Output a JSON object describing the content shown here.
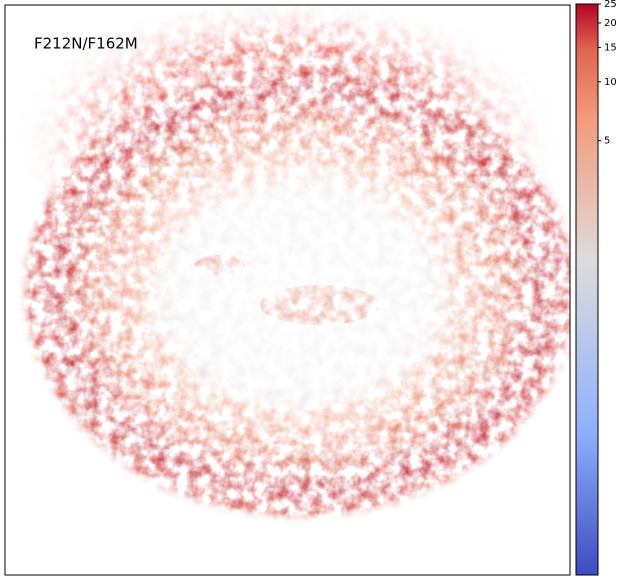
{
  "chart_data": {
    "type": "image",
    "annotation": "F212N/F162M",
    "colorbar": {
      "scale": "log",
      "clim": [
        0.03,
        25
      ],
      "ticks": [
        5,
        10,
        15,
        20,
        25
      ],
      "colormap": "coolwarm"
    }
  }
}
